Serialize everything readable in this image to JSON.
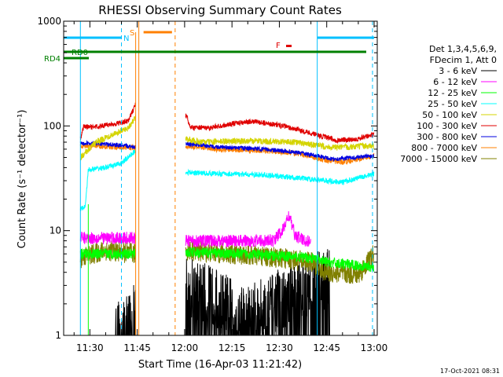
{
  "chart_data": {
    "type": "line",
    "title": "RHESSI Observing Summary Count Rates",
    "xlabel": "Start Time (16-Apr-03 11:21:42)",
    "ylabel": "Count Rate (s⁻¹ detector⁻¹)",
    "yscale": "log",
    "ylim": [
      1,
      1000
    ],
    "xlim": [
      "11:21:42",
      "13:01:00"
    ],
    "x_ticks": [
      "11:30",
      "11:45",
      "12:00",
      "12:15",
      "12:30",
      "12:45",
      "13:00"
    ],
    "y_ticks": [
      "1",
      "10",
      "100",
      "1000"
    ],
    "legend_header": [
      "Det 1,3,4,5,6,9,",
      "FDecim 1, Att 0"
    ],
    "legend_position": "right",
    "series": [
      {
        "name": "3 - 6 keV",
        "color": "#000000"
      },
      {
        "name": "6 - 12 keV",
        "color": "#ff00ff"
      },
      {
        "name": "12 - 25 keV",
        "color": "#00ff00"
      },
      {
        "name": "25 - 50 keV",
        "color": "#00ffff"
      },
      {
        "name": "50 - 100 keV",
        "color": "#d4d400"
      },
      {
        "name": "100 - 300 keV",
        "color": "#e00000"
      },
      {
        "name": "300 - 800 keV",
        "color": "#0000e0"
      },
      {
        "name": "800 - 7000 keV",
        "color": "#ff8000"
      },
      {
        "name": "7000 - 15000 keV",
        "color": "#808000"
      }
    ],
    "flags": [
      {
        "label": "RD0",
        "color": "#008000"
      },
      {
        "label": "RD4",
        "color": "#008000"
      },
      {
        "label": "N",
        "color": "#00c0ff"
      },
      {
        "label": "S",
        "color": "#ff8000"
      },
      {
        "label": "F",
        "color": "#e00000"
      }
    ],
    "timestamp": "17-Oct-2021 08:31"
  }
}
